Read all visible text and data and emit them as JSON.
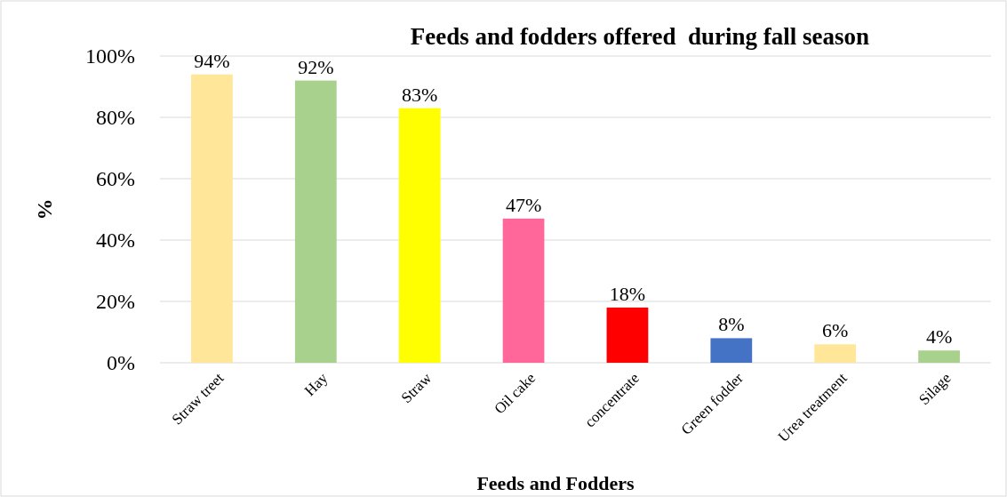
{
  "chart_data": {
    "type": "bar",
    "title": "Feeds and fodders offered  during fall season",
    "xlabel": "Feeds and Fodders",
    "ylabel": "%",
    "categories": [
      "Straw treet",
      "Hay",
      "Straw",
      "Oil cake",
      "concentrate",
      "Green fodder",
      "Urea treatment",
      "Silage"
    ],
    "values": [
      94,
      92,
      83,
      47,
      18,
      8,
      6,
      4
    ],
    "colors": [
      "#ffe699",
      "#a9d18e",
      "#ffff00",
      "#ff6699",
      "#ff0000",
      "#4472c4",
      "#ffe699",
      "#a9d18e"
    ],
    "value_labels": [
      "94%",
      "92%",
      "83%",
      "47%",
      "18%",
      "8%",
      "6%",
      "4%"
    ],
    "ylim": [
      0,
      100
    ],
    "yticks": [
      {
        "value": 0,
        "label": "0%"
      },
      {
        "value": 20,
        "label": "20%"
      },
      {
        "value": 40,
        "label": "40%"
      },
      {
        "value": 60,
        "label": "60%"
      },
      {
        "value": 80,
        "label": "80%"
      },
      {
        "value": 100,
        "label": "100%"
      }
    ],
    "grid": "y"
  }
}
